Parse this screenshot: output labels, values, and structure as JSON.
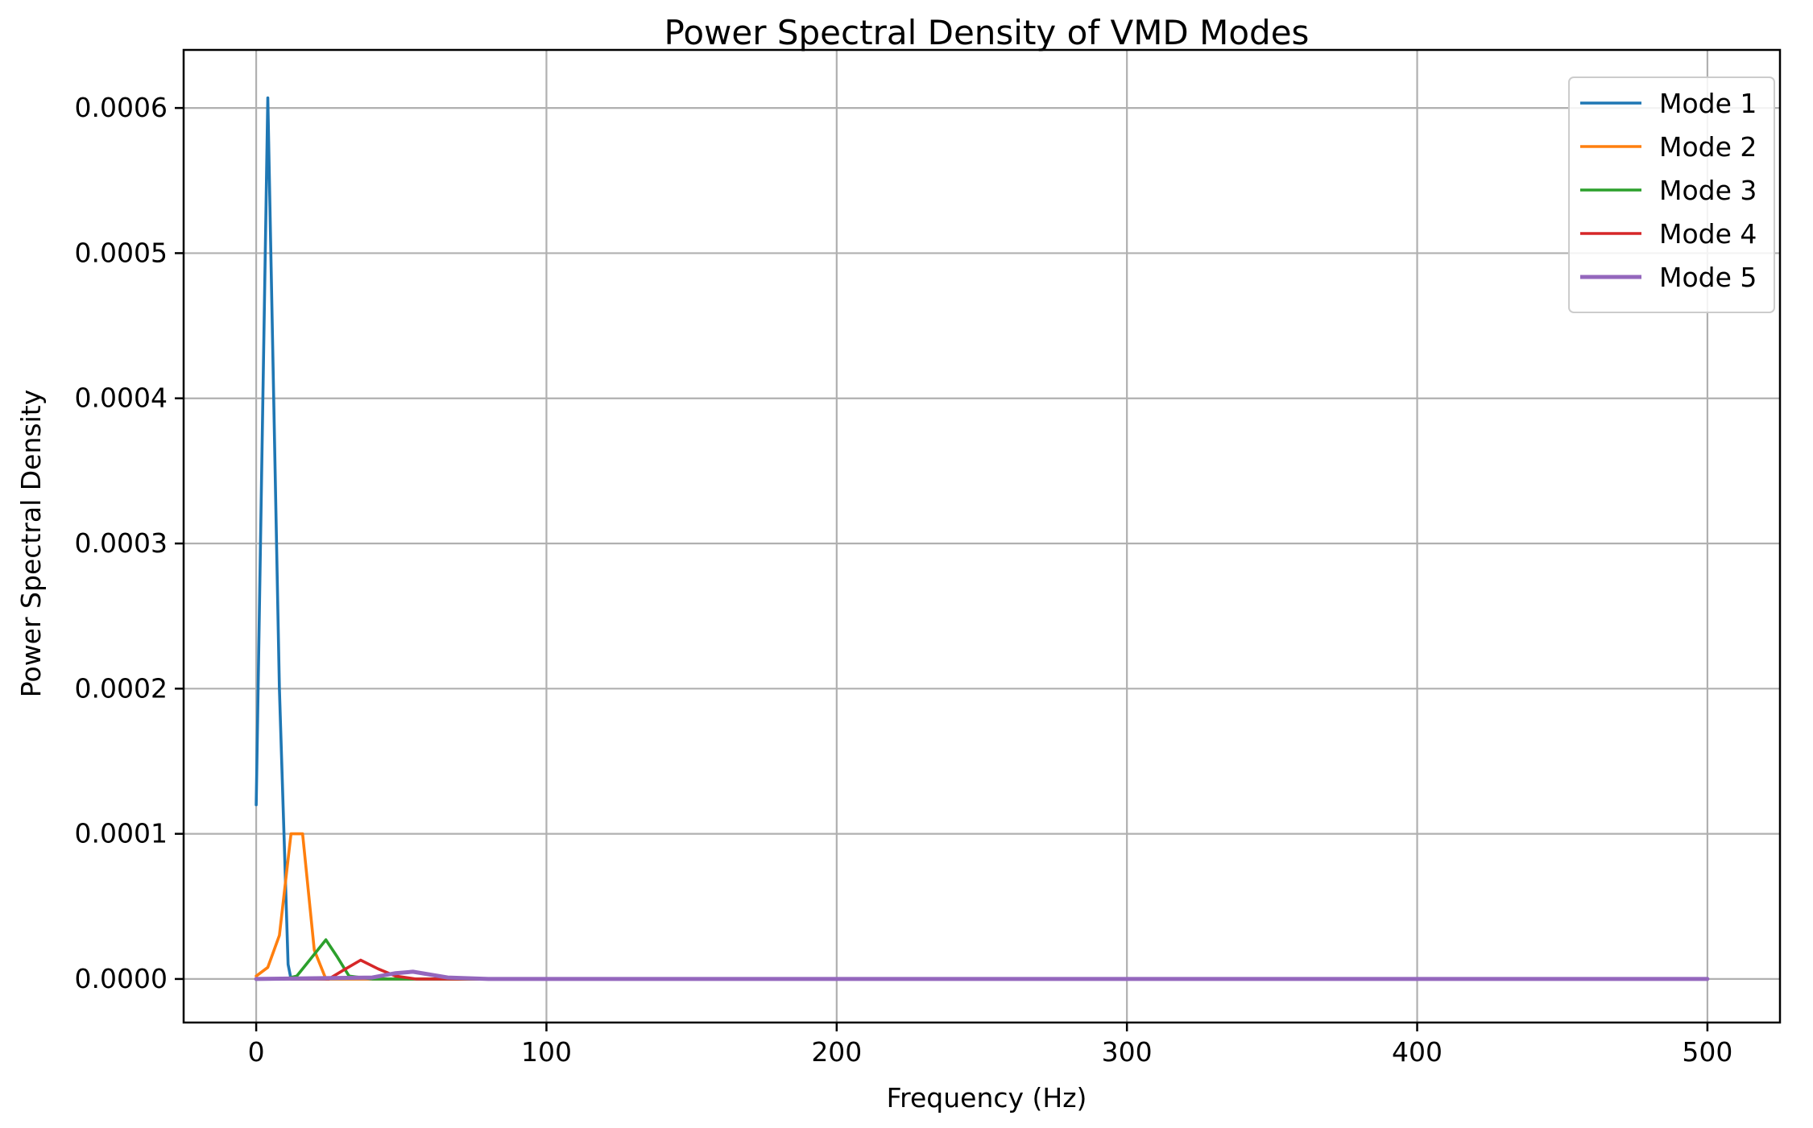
{
  "chart_data": {
    "type": "line",
    "title": "Power Spectral Density of VMD Modes",
    "xlabel": "Frequency (Hz)",
    "ylabel": "Power Spectral Density",
    "xlim": [
      -25,
      525
    ],
    "ylim": [
      -3e-05,
      0.00064
    ],
    "xticks": [
      0,
      100,
      200,
      300,
      400,
      500
    ],
    "xtick_labels": [
      "0",
      "100",
      "200",
      "300",
      "400",
      "500"
    ],
    "yticks": [
      0,
      0.0001,
      0.0002,
      0.0003,
      0.0004,
      0.0005,
      0.0006
    ],
    "ytick_labels": [
      "0.0000",
      "0.0001",
      "0.0002",
      "0.0003",
      "0.0004",
      "0.0005",
      "0.0006"
    ],
    "grid": true,
    "legend_position": "top-right",
    "series": [
      {
        "name": "Mode 1",
        "color": "#1f77b4",
        "x": [
          0,
          4,
          8,
          11,
          12,
          20,
          50,
          100,
          200,
          300,
          400,
          500
        ],
        "y": [
          0.00012,
          0.000607,
          0.0002,
          1e-05,
          0.0,
          0.0,
          0.0,
          0.0,
          0.0,
          0.0,
          0.0,
          0.0
        ]
      },
      {
        "name": "Mode 2",
        "color": "#ff7f0e",
        "x": [
          0,
          4,
          8,
          12,
          16,
          20,
          24,
          40,
          100,
          200,
          300,
          400,
          500
        ],
        "y": [
          2e-06,
          8e-06,
          3e-05,
          0.0001,
          0.0001,
          2e-05,
          0.0,
          0.0,
          0.0,
          0.0,
          0.0,
          0.0,
          0.0
        ]
      },
      {
        "name": "Mode 3",
        "color": "#2ca02c",
        "x": [
          0,
          10,
          14,
          18,
          24,
          28,
          32,
          40,
          100,
          200,
          300,
          400,
          500
        ],
        "y": [
          0.0,
          0.0,
          2e-06,
          1.2e-05,
          2.7e-05,
          1.5e-05,
          2e-06,
          0.0,
          0.0,
          0.0,
          0.0,
          0.0,
          0.0
        ]
      },
      {
        "name": "Mode 4",
        "color": "#d62728",
        "x": [
          0,
          25,
          30,
          36,
          42,
          48,
          55,
          100,
          200,
          300,
          400,
          500
        ],
        "y": [
          0.0,
          0.0,
          6e-06,
          1.3e-05,
          7e-06,
          2e-06,
          0.0,
          0.0,
          0.0,
          0.0,
          0.0,
          0.0
        ]
      },
      {
        "name": "Mode 5",
        "color": "#9467bd",
        "x": [
          0,
          40,
          48,
          54,
          60,
          66,
          80,
          100,
          200,
          300,
          400,
          500
        ],
        "y": [
          0.0,
          1e-06,
          4e-06,
          5e-06,
          3e-06,
          1e-06,
          0.0,
          0.0,
          0.0,
          0.0,
          0.0,
          0.0
        ]
      }
    ]
  }
}
